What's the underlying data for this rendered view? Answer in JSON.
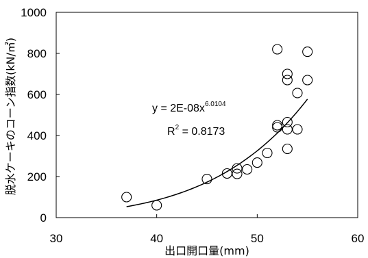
{
  "chart_data": {
    "type": "scatter",
    "xlabel": "出口開口量(mm)",
    "ylabel": "脱水ケーキのコーン指数(kN/㎡)",
    "xlim": [
      30,
      60
    ],
    "ylim": [
      0,
      1000
    ],
    "x_ticks": [
      30,
      40,
      50,
      60
    ],
    "y_ticks": [
      0,
      200,
      400,
      600,
      800,
      1000
    ],
    "grid": false,
    "points": [
      {
        "x": 37,
        "y": 100
      },
      {
        "x": 40,
        "y": 60
      },
      {
        "x": 45,
        "y": 188
      },
      {
        "x": 47,
        "y": 215
      },
      {
        "x": 48,
        "y": 213
      },
      {
        "x": 48,
        "y": 240
      },
      {
        "x": 49,
        "y": 235
      },
      {
        "x": 50,
        "y": 268
      },
      {
        "x": 51,
        "y": 315
      },
      {
        "x": 52,
        "y": 440
      },
      {
        "x": 52,
        "y": 450
      },
      {
        "x": 52,
        "y": 820
      },
      {
        "x": 53,
        "y": 335
      },
      {
        "x": 53,
        "y": 430
      },
      {
        "x": 53,
        "y": 465
      },
      {
        "x": 53,
        "y": 670
      },
      {
        "x": 53,
        "y": 700
      },
      {
        "x": 54,
        "y": 430
      },
      {
        "x": 54,
        "y": 607
      },
      {
        "x": 55,
        "y": 670
      },
      {
        "x": 55,
        "y": 808
      }
    ],
    "trendline": {
      "type": "power",
      "a": 2e-08,
      "b": 6.0104,
      "x_range": [
        37,
        55
      ]
    },
    "annotations": {
      "equation_main": "y = 2E-08x",
      "equation_exp": "6.0104",
      "r2_prefix": "R",
      "r2_sup": "2",
      "r2_value": " = 0.8173"
    }
  }
}
